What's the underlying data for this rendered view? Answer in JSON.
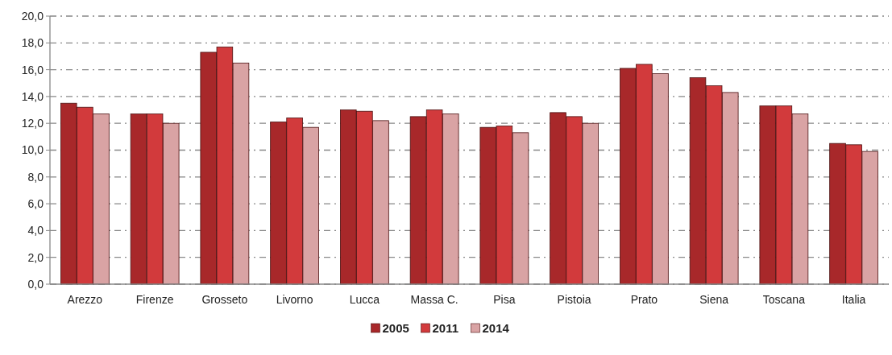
{
  "chart_data": {
    "type": "bar",
    "categories": [
      "Arezzo",
      "Firenze",
      "Grosseto",
      "Livorno",
      "Lucca",
      "Massa C.",
      "Pisa",
      "Pistoia",
      "Prato",
      "Siena",
      "Toscana",
      "Italia"
    ],
    "series": [
      {
        "name": "2005",
        "color": "#a8282a",
        "values": [
          13.5,
          12.7,
          17.3,
          12.1,
          13.0,
          12.5,
          11.7,
          12.8,
          16.1,
          15.4,
          13.3,
          10.5
        ]
      },
      {
        "name": "2011",
        "color": "#d23a3c",
        "values": [
          13.2,
          12.7,
          17.7,
          12.4,
          12.9,
          13.0,
          11.8,
          12.5,
          16.4,
          14.8,
          13.3,
          10.4
        ]
      },
      {
        "name": "2014",
        "color": "#d9a3a4",
        "values": [
          12.7,
          12.0,
          16.5,
          11.7,
          12.2,
          12.7,
          11.3,
          12.0,
          15.7,
          14.3,
          12.7,
          9.9
        ]
      }
    ],
    "ylim": [
      0,
      20
    ],
    "yticks": [
      {
        "value": 0,
        "label": "0,0"
      },
      {
        "value": 2,
        "label": "2,0"
      },
      {
        "value": 4,
        "label": "4,0"
      },
      {
        "value": 6,
        "label": "6,0"
      },
      {
        "value": 8,
        "label": "8,0"
      },
      {
        "value": 10,
        "label": "10,0"
      },
      {
        "value": 12,
        "label": "12,0"
      },
      {
        "value": 14,
        "label": "14,0"
      },
      {
        "value": 16,
        "label": "16,0"
      },
      {
        "value": 18,
        "label": "18,0"
      },
      {
        "value": 20,
        "label": "20,0"
      }
    ],
    "grid": "y",
    "legend": "bottom"
  }
}
